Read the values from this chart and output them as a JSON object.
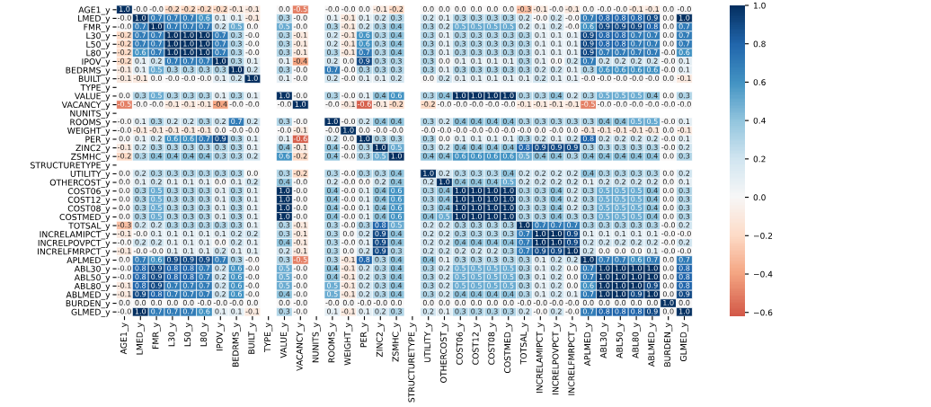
{
  "chart_data": {
    "type": "heatmap",
    "categories": [
      "AGE1_y",
      "LMED_y",
      "FMR_y",
      "L30_y",
      "L50_y",
      "L80_y",
      "IPOV_y",
      "BEDRMS_y",
      "BUILT_y",
      "TYPE_y",
      "VALUE_y",
      "VACANCY_y",
      "NUNITS_y",
      "ROOMS_y",
      "WEIGHT_y",
      "PER_y",
      "ZINC2_y",
      "ZSMHC_y",
      "STRUCTURETYPE_y",
      "UTILITY_y",
      "OTHERCOST_y",
      "COST06_y",
      "COST12_y",
      "COST08_y",
      "COSTMED_y",
      "TOTSAL_y",
      "INCRELAMIPCT_y",
      "INCRELPOVPCT_y",
      "INCRELFMRPCT_y",
      "APLMED_y",
      "ABL30_y",
      "ABL50_y",
      "ABL80_y",
      "ABLMED_y",
      "BURDEN_y",
      "GLMED_y"
    ],
    "y_categories": [
      "AGE1_y",
      "LMED_y",
      "FMR_y",
      "L30_y",
      "L50_y",
      "L80_y",
      "IPOV_y",
      "BEDRMS_y",
      "BUILT_y",
      "TYPE_y",
      "VALUE_y",
      "VACANCY_y",
      "NUNITS_y",
      "ROOMS_y",
      "WEIGHT_y",
      "PER_y",
      "ZINC2_y",
      "ZSMHC_y",
      "STRUCTURETYPE_y",
      "UTILITY_y",
      "OTHERCOST_y",
      "COST06_y",
      "COST12_y",
      "COST08_y",
      "COSTMED_y",
      "TOTSAL_y",
      "INCRELAMIPCT_y",
      "INCRELPOVPCT_y",
      "INCRELFMRPCT_y",
      "APLMED_y",
      "ABL30_y",
      "ABL50_y",
      "ABL80_y",
      "ABLMED_y",
      "BURDEN_y",
      "GLMED_y"
    ],
    "cells": [
      [
        1.0,
        -0.0,
        -0.0,
        -0.2,
        -0.2,
        -0.2,
        -0.2,
        -0.1,
        -0.1,
        null,
        0.0,
        -0.5,
        null,
        -0.0,
        -0.0,
        0.0,
        -0.1,
        -0.2,
        null,
        0.0,
        0.0,
        0.0,
        0.0,
        0.0,
        0.0,
        -0.3,
        -0.1,
        -0.0,
        -0.1,
        0.0,
        -0.0,
        -0.0,
        -0.1,
        -0.1,
        0.0,
        -0.0
      ],
      [
        -0.0,
        1.0,
        0.7,
        0.7,
        0.7,
        0.6,
        0.1,
        0.1,
        -0.1,
        null,
        0.3,
        -0.0,
        null,
        0.1,
        -0.1,
        0.1,
        0.2,
        0.3,
        null,
        0.2,
        0.1,
        0.3,
        0.3,
        0.3,
        0.3,
        0.2,
        -0.0,
        0.2,
        -0.0,
        0.7,
        0.8,
        0.8,
        0.8,
        0.9,
        0.0,
        1.0
      ],
      [
        -0.0,
        0.7,
        1.0,
        0.7,
        0.7,
        0.7,
        0.2,
        0.5,
        0.0,
        null,
        0.5,
        -0.0,
        null,
        0.3,
        -0.1,
        0.2,
        0.3,
        0.4,
        null,
        0.3,
        0.2,
        0.5,
        0.5,
        0.5,
        0.5,
        0.2,
        0.1,
        0.2,
        -0.0,
        0.6,
        0.9,
        0.9,
        0.9,
        0.8,
        0.0,
        0.7
      ],
      [
        -0.2,
        0.7,
        0.7,
        1.0,
        1.0,
        1.0,
        0.7,
        0.3,
        -0.0,
        null,
        0.3,
        -0.1,
        null,
        0.2,
        -0.1,
        0.6,
        0.3,
        0.4,
        null,
        0.3,
        0.1,
        0.3,
        0.3,
        0.3,
        0.3,
        0.3,
        0.1,
        0.1,
        0.1,
        0.9,
        0.8,
        0.8,
        0.7,
        0.7,
        0.0,
        0.7
      ],
      [
        -0.2,
        0.7,
        0.7,
        1.0,
        1.0,
        1.0,
        0.7,
        0.3,
        -0.0,
        null,
        0.3,
        -0.1,
        null,
        0.2,
        -0.1,
        0.6,
        0.3,
        0.4,
        null,
        0.3,
        0.1,
        0.3,
        0.3,
        0.3,
        0.3,
        0.3,
        0.1,
        0.1,
        0.1,
        0.9,
        0.8,
        0.8,
        0.7,
        0.7,
        0.0,
        0.7
      ],
      [
        -0.2,
        0.6,
        0.7,
        1.0,
        1.0,
        1.0,
        0.7,
        0.3,
        -0.0,
        null,
        0.3,
        -0.1,
        null,
        0.3,
        -0.1,
        0.7,
        0.3,
        0.4,
        null,
        0.3,
        0.1,
        0.3,
        0.3,
        0.3,
        0.3,
        0.3,
        0.1,
        0.1,
        0.1,
        0.9,
        0.7,
        0.7,
        0.7,
        0.7,
        -0.0,
        0.6
      ],
      [
        -0.2,
        0.1,
        0.2,
        0.7,
        0.7,
        0.7,
        1.0,
        0.3,
        0.1,
        null,
        0.1,
        -0.4,
        null,
        0.2,
        0.0,
        0.9,
        0.3,
        0.3,
        null,
        0.3,
        0.0,
        0.1,
        0.1,
        0.1,
        0.1,
        0.3,
        0.1,
        0.0,
        0.2,
        0.7,
        0.2,
        0.2,
        0.2,
        0.2,
        -0.0,
        0.1
      ],
      [
        -0.1,
        0.1,
        0.5,
        0.3,
        0.3,
        0.3,
        0.3,
        1.0,
        0.2,
        null,
        0.3,
        -0.0,
        null,
        0.7,
        -0.0,
        0.3,
        0.3,
        0.3,
        null,
        0.3,
        0.1,
        0.3,
        0.3,
        0.3,
        0.3,
        0.3,
        0.2,
        0.2,
        0.1,
        0.3,
        0.6,
        0.6,
        0.6,
        0.6,
        -0.0,
        0.1
      ],
      [
        -0.1,
        -0.1,
        0.0,
        -0.0,
        -0.0,
        -0.0,
        0.1,
        0.2,
        1.0,
        null,
        0.1,
        -0.0,
        null,
        0.2,
        -0.0,
        0.1,
        0.1,
        0.2,
        null,
        0.0,
        0.2,
        0.1,
        0.1,
        0.1,
        0.1,
        0.1,
        0.2,
        0.1,
        0.1,
        -0.0,
        -0.0,
        -0.0,
        -0.0,
        -0.0,
        0.0,
        -0.1
      ],
      [
        null,
        null,
        null,
        null,
        null,
        null,
        null,
        null,
        null,
        null,
        null,
        null,
        null,
        null,
        null,
        null,
        null,
        null,
        null,
        null,
        null,
        null,
        null,
        null,
        null,
        null,
        null,
        null,
        null,
        null,
        null,
        null,
        null,
        null,
        null,
        null
      ],
      [
        0.0,
        0.3,
        0.5,
        0.3,
        0.3,
        0.3,
        0.1,
        0.3,
        0.1,
        null,
        1.0,
        -0.0,
        null,
        0.3,
        -0.0,
        0.1,
        0.4,
        0.6,
        null,
        0.3,
        0.4,
        1.0,
        1.0,
        1.0,
        1.0,
        0.3,
        0.3,
        0.4,
        0.2,
        0.3,
        0.5,
        0.5,
        0.5,
        0.4,
        0.0,
        0.3
      ],
      [
        -0.5,
        -0.0,
        -0.0,
        -0.1,
        -0.1,
        -0.1,
        -0.4,
        -0.0,
        -0.0,
        null,
        -0.0,
        1.0,
        null,
        -0.0,
        -0.1,
        -0.6,
        -0.1,
        -0.2,
        null,
        -0.2,
        -0.0,
        -0.0,
        -0.0,
        -0.0,
        -0.0,
        -0.1,
        -0.1,
        -0.1,
        -0.1,
        -0.5,
        -0.0,
        -0.0,
        -0.0,
        -0.0,
        -0.0,
        -0.0
      ],
      [
        null,
        null,
        null,
        null,
        null,
        null,
        null,
        null,
        null,
        null,
        null,
        null,
        null,
        null,
        null,
        null,
        null,
        null,
        null,
        null,
        null,
        null,
        null,
        null,
        null,
        null,
        null,
        null,
        null,
        null,
        null,
        null,
        null,
        null,
        null,
        null
      ],
      [
        -0.0,
        0.1,
        0.3,
        0.2,
        0.2,
        0.3,
        0.2,
        0.7,
        0.2,
        null,
        0.3,
        -0.0,
        null,
        1.0,
        -0.0,
        0.2,
        0.4,
        0.4,
        null,
        0.3,
        0.2,
        0.4,
        0.4,
        0.4,
        0.4,
        0.3,
        0.3,
        0.3,
        0.3,
        0.3,
        0.4,
        0.4,
        0.5,
        0.5,
        -0.0,
        0.1
      ],
      [
        -0.0,
        -0.1,
        -0.1,
        -0.1,
        -0.1,
        -0.1,
        0.0,
        -0.0,
        -0.0,
        null,
        -0.0,
        -0.1,
        null,
        -0.0,
        1.0,
        0.0,
        -0.0,
        -0.0,
        null,
        -0.0,
        -0.0,
        -0.0,
        -0.0,
        -0.0,
        -0.0,
        -0.0,
        0.0,
        -0.0,
        0.0,
        -0.1,
        -0.1,
        -0.1,
        -0.1,
        -0.1,
        0.0,
        -0.1
      ],
      [
        0.0,
        0.1,
        0.2,
        0.6,
        0.6,
        0.7,
        0.9,
        0.3,
        0.1,
        null,
        0.1,
        -0.6,
        null,
        0.2,
        0.0,
        1.0,
        0.3,
        0.3,
        null,
        0.3,
        0.0,
        0.1,
        0.1,
        0.1,
        0.1,
        0.3,
        0.2,
        0.1,
        0.2,
        0.8,
        0.2,
        0.2,
        0.2,
        0.2,
        -0.0,
        0.1
      ],
      [
        -0.1,
        0.2,
        0.3,
        0.3,
        0.3,
        0.3,
        0.3,
        0.3,
        0.1,
        null,
        0.4,
        -0.1,
        null,
        0.4,
        -0.0,
        0.3,
        1.0,
        0.5,
        null,
        0.3,
        0.2,
        0.4,
        0.4,
        0.4,
        0.4,
        0.8,
        0.9,
        0.9,
        0.9,
        0.3,
        0.3,
        0.3,
        0.3,
        0.3,
        -0.0,
        0.2
      ],
      [
        -0.2,
        0.3,
        0.4,
        0.4,
        0.4,
        0.4,
        0.3,
        0.3,
        0.2,
        null,
        0.6,
        -0.2,
        null,
        0.4,
        -0.0,
        0.3,
        0.5,
        1.0,
        null,
        0.4,
        0.4,
        0.6,
        0.6,
        0.6,
        0.6,
        0.5,
        0.4,
        0.4,
        0.3,
        0.4,
        0.4,
        0.4,
        0.4,
        0.4,
        0.0,
        0.3
      ],
      [
        null,
        null,
        null,
        null,
        null,
        null,
        null,
        null,
        null,
        null,
        null,
        null,
        null,
        null,
        null,
        null,
        null,
        null,
        null,
        null,
        null,
        null,
        null,
        null,
        null,
        null,
        null,
        null,
        null,
        null,
        null,
        null,
        null,
        null,
        null,
        null
      ],
      [
        0.0,
        0.2,
        0.3,
        0.3,
        0.3,
        0.3,
        0.3,
        0.3,
        0.0,
        null,
        0.3,
        -0.2,
        null,
        0.3,
        -0.0,
        0.3,
        0.3,
        0.4,
        null,
        1.0,
        0.2,
        0.3,
        0.3,
        0.3,
        0.4,
        0.2,
        0.2,
        0.2,
        0.2,
        0.4,
        0.3,
        0.3,
        0.3,
        0.3,
        0.0,
        0.2
      ],
      [
        0.0,
        0.1,
        0.2,
        0.1,
        0.1,
        0.1,
        0.0,
        0.1,
        0.2,
        null,
        0.4,
        -0.0,
        null,
        0.2,
        -0.0,
        0.0,
        0.2,
        0.4,
        null,
        0.2,
        1.0,
        0.4,
        0.4,
        0.4,
        0.5,
        0.2,
        0.2,
        0.2,
        0.2,
        0.1,
        0.2,
        0.2,
        0.2,
        0.2,
        0.0,
        0.1
      ],
      [
        0.0,
        0.3,
        0.5,
        0.3,
        0.3,
        0.3,
        0.1,
        0.3,
        0.1,
        null,
        1.0,
        -0.0,
        null,
        0.4,
        -0.0,
        0.1,
        0.4,
        0.6,
        null,
        0.3,
        0.4,
        1.0,
        1.0,
        1.0,
        1.0,
        0.3,
        0.3,
        0.4,
        0.2,
        0.3,
        0.5,
        0.5,
        0.5,
        0.4,
        0.0,
        0.3
      ],
      [
        0.0,
        0.3,
        0.5,
        0.3,
        0.3,
        0.3,
        0.1,
        0.3,
        0.1,
        null,
        1.0,
        -0.0,
        null,
        0.4,
        -0.0,
        0.1,
        0.4,
        0.6,
        null,
        0.3,
        0.4,
        1.0,
        1.0,
        1.0,
        1.0,
        0.3,
        0.3,
        0.4,
        0.2,
        0.3,
        0.5,
        0.5,
        0.5,
        0.4,
        0.0,
        0.3
      ],
      [
        0.0,
        0.3,
        0.5,
        0.3,
        0.3,
        0.3,
        0.1,
        0.3,
        0.1,
        null,
        1.0,
        -0.0,
        null,
        0.4,
        -0.0,
        0.1,
        0.4,
        0.6,
        null,
        0.3,
        0.4,
        1.0,
        1.0,
        1.0,
        1.0,
        0.3,
        0.3,
        0.4,
        0.2,
        0.3,
        0.5,
        0.5,
        0.5,
        0.4,
        0.0,
        0.3
      ],
      [
        0.0,
        0.3,
        0.5,
        0.3,
        0.3,
        0.3,
        0.1,
        0.3,
        0.1,
        null,
        1.0,
        -0.0,
        null,
        0.4,
        -0.0,
        0.1,
        0.4,
        0.6,
        null,
        0.4,
        0.5,
        1.0,
        1.0,
        1.0,
        1.0,
        0.3,
        0.3,
        0.4,
        0.3,
        0.3,
        0.5,
        0.5,
        0.5,
        0.4,
        0.0,
        0.3
      ],
      [
        -0.3,
        0.2,
        0.2,
        0.3,
        0.3,
        0.3,
        0.3,
        0.3,
        0.1,
        null,
        0.3,
        -0.1,
        null,
        0.3,
        -0.0,
        0.3,
        0.8,
        0.5,
        null,
        0.2,
        0.2,
        0.3,
        0.3,
        0.3,
        0.3,
        1.0,
        0.7,
        0.7,
        0.7,
        0.3,
        0.3,
        0.3,
        0.3,
        0.3,
        -0.0,
        0.2
      ],
      [
        -0.1,
        -0.0,
        0.1,
        0.1,
        0.1,
        0.1,
        0.1,
        0.2,
        0.2,
        null,
        0.3,
        -0.1,
        null,
        0.3,
        0.0,
        0.2,
        0.9,
        0.4,
        null,
        0.2,
        0.2,
        0.3,
        0.3,
        0.3,
        0.3,
        0.7,
        1.0,
        1.0,
        0.9,
        0.1,
        0.1,
        0.1,
        0.1,
        0.1,
        -0.0,
        -0.0
      ],
      [
        -0.0,
        0.2,
        0.2,
        0.1,
        0.1,
        0.1,
        0.0,
        0.2,
        0.1,
        null,
        0.4,
        -0.1,
        null,
        0.3,
        -0.0,
        0.1,
        0.9,
        0.4,
        null,
        0.2,
        0.2,
        0.4,
        0.4,
        0.4,
        0.4,
        0.7,
        1.0,
        1.0,
        0.9,
        0.2,
        0.2,
        0.2,
        0.2,
        0.2,
        -0.0,
        0.2
      ],
      [
        -0.1,
        -0.0,
        -0.0,
        0.1,
        0.1,
        0.1,
        0.2,
        0.1,
        0.1,
        null,
        0.2,
        -0.1,
        null,
        0.3,
        0.0,
        0.2,
        0.9,
        0.3,
        null,
        0.2,
        0.2,
        0.2,
        0.2,
        0.2,
        0.3,
        0.7,
        0.9,
        0.9,
        1.0,
        0.2,
        0.0,
        0.0,
        0.0,
        0.1,
        -0.0,
        -0.0
      ],
      [
        0.0,
        0.7,
        0.6,
        0.9,
        0.9,
        0.9,
        0.7,
        0.3,
        -0.0,
        null,
        0.3,
        -0.5,
        null,
        0.3,
        -0.1,
        0.8,
        0.3,
        0.4,
        null,
        0.4,
        0.1,
        0.3,
        0.3,
        0.3,
        0.3,
        0.3,
        0.1,
        0.2,
        0.2,
        1.0,
        0.7,
        0.7,
        0.6,
        0.7,
        0.0,
        0.7
      ],
      [
        -0.0,
        0.8,
        0.9,
        0.8,
        0.8,
        0.7,
        0.2,
        0.6,
        -0.0,
        null,
        0.5,
        -0.0,
        null,
        0.4,
        -0.1,
        0.2,
        0.3,
        0.4,
        null,
        0.3,
        0.2,
        0.5,
        0.5,
        0.5,
        0.5,
        0.3,
        0.1,
        0.2,
        0.0,
        0.7,
        1.0,
        1.0,
        1.0,
        1.0,
        0.0,
        0.8
      ],
      [
        -0.0,
        0.8,
        0.9,
        0.8,
        0.8,
        0.7,
        0.2,
        0.6,
        -0.0,
        null,
        0.5,
        -0.0,
        null,
        0.4,
        -0.1,
        0.2,
        0.3,
        0.4,
        null,
        0.3,
        0.2,
        0.5,
        0.5,
        0.5,
        0.5,
        0.3,
        0.1,
        0.2,
        0.0,
        0.7,
        1.0,
        1.0,
        1.0,
        1.0,
        0.0,
        0.8
      ],
      [
        -0.1,
        0.8,
        0.9,
        0.7,
        0.7,
        0.7,
        0.2,
        0.6,
        -0.0,
        null,
        0.5,
        -0.0,
        null,
        0.5,
        -0.1,
        0.2,
        0.3,
        0.4,
        null,
        0.3,
        0.2,
        0.5,
        0.5,
        0.5,
        0.5,
        0.3,
        0.1,
        0.2,
        0.0,
        0.6,
        1.0,
        1.0,
        1.0,
        0.9,
        0.0,
        0.8
      ],
      [
        -0.1,
        0.9,
        0.8,
        0.7,
        0.7,
        0.7,
        0.2,
        0.6,
        -0.0,
        null,
        0.4,
        -0.0,
        null,
        0.5,
        -0.1,
        0.2,
        0.3,
        0.4,
        null,
        0.3,
        0.2,
        0.4,
        0.4,
        0.4,
        0.4,
        0.3,
        0.1,
        0.2,
        0.1,
        0.7,
        1.0,
        1.0,
        0.9,
        1.0,
        0.0,
        0.9
      ],
      [
        0.0,
        0.0,
        0.0,
        0.0,
        0.0,
        -0.0,
        -0.0,
        -0.0,
        0.0,
        null,
        0.0,
        -0.0,
        null,
        -0.0,
        0.0,
        -0.0,
        -0.0,
        0.0,
        null,
        0.0,
        0.0,
        0.0,
        0.0,
        0.0,
        0.0,
        -0.0,
        -0.0,
        -0.0,
        -0.0,
        0.0,
        0.0,
        0.0,
        0.0,
        0.0,
        1.0,
        0.0
      ],
      [
        -0.0,
        1.0,
        0.7,
        0.7,
        0.7,
        0.6,
        0.1,
        0.1,
        -0.1,
        null,
        0.3,
        -0.0,
        null,
        0.1,
        -0.1,
        0.1,
        0.2,
        0.3,
        null,
        0.2,
        0.1,
        0.3,
        0.3,
        0.3,
        0.3,
        0.2,
        -0.0,
        0.2,
        -0.0,
        0.7,
        0.8,
        0.8,
        0.8,
        0.9,
        0.0,
        1.0
      ]
    ],
    "cell_labels": [
      [
        "1.0",
        "-0.0",
        "-0.0",
        "-0.2",
        "-0.2",
        "-0.2",
        "-0.2",
        "-0.1",
        "-0.1",
        null,
        "0.0",
        "-0.5",
        null,
        "-0.0",
        "-0.0",
        "0.0",
        "-0.1",
        "-0.2",
        null,
        "0.0",
        "0.0",
        "0.0",
        "0.0",
        "0.0",
        "0.0",
        "-0.3",
        "-0.1",
        "-0.0",
        "-0.1",
        "0.0",
        "-0.0",
        "-0.0",
        "-0.1",
        "-0.1",
        "0.0",
        "-0.0"
      ],
      [
        "-0.0",
        "1.0",
        "0.7",
        "0.7",
        "0.7",
        "0.6",
        "0.1",
        "0.1",
        "-0.1",
        null,
        "0.3",
        "-0.0",
        null,
        "0.1",
        "-0.1",
        "0.1",
        "0.2",
        "0.3",
        null,
        "0.2",
        "0.1",
        "0.3",
        "0.3",
        "0.3",
        "0.3",
        "0.2",
        "-0.0",
        "0.2",
        "-0.0",
        "0.7",
        "0.8",
        "0.8",
        "0.8",
        "0.9",
        "0.0",
        "1.0"
      ],
      [
        "-0.0",
        "0.7",
        "1.0",
        "0.7",
        "0.7",
        "0.7",
        "0.2",
        "0.5",
        "0.0",
        null,
        "0.5",
        "-0.0",
        null,
        "0.3",
        "-0.1",
        "0.2",
        "0.3",
        "0.4",
        null,
        "0.3",
        "0.2",
        "0.5",
        "0.5",
        "0.5",
        "0.5",
        "0.2",
        "0.1",
        "0.2",
        "-0.0",
        "0.6",
        "0.9",
        "0.9",
        "0.9",
        "0.8",
        "0.0",
        "0.7"
      ],
      [
        "-0.2",
        "0.7",
        "0.7",
        "1.0",
        "1.0",
        "1.0",
        "0.7",
        "0.3",
        "-0.0",
        null,
        "0.3",
        "-0.1",
        null,
        "0.2",
        "-0.1",
        "0.6",
        "0.3",
        "0.4",
        null,
        "0.3",
        "0.1",
        "0.3",
        "0.3",
        "0.3",
        "0.3",
        "0.3",
        "0.1",
        "0.1",
        "0.1",
        "0.9",
        "0.8",
        "0.8",
        "0.7",
        "0.7",
        "0.0",
        "0.7"
      ],
      [
        "-0.2",
        "0.7",
        "0.7",
        "1.0",
        "1.0",
        "1.0",
        "0.7",
        "0.3",
        "-0.0",
        null,
        "0.3",
        "-0.1",
        null,
        "0.2",
        "-0.1",
        "0.6",
        "0.3",
        "0.4",
        null,
        "0.3",
        "0.1",
        "0.3",
        "0.3",
        "0.3",
        "0.3",
        "0.3",
        "0.1",
        "0.1",
        "0.1",
        "0.9",
        "0.8",
        "0.8",
        "0.7",
        "0.7",
        "0.0",
        "0.7"
      ],
      [
        "-0.2",
        "0.6",
        "0.7",
        "1.0",
        "1.0",
        "1.0",
        "0.7",
        "0.3",
        "-0.0",
        null,
        "0.3",
        "-0.1",
        null,
        "0.3",
        "-0.1",
        "0.7",
        "0.3",
        "0.4",
        null,
        "0.3",
        "0.1",
        "0.3",
        "0.3",
        "0.3",
        "0.3",
        "0.3",
        "0.1",
        "0.1",
        "0.1",
        "0.9",
        "0.7",
        "0.7",
        "0.7",
        "0.7",
        "-0.0",
        "0.6"
      ],
      [
        "-0.2",
        "0.1",
        "0.2",
        "0.7",
        "0.7",
        "0.7",
        "1.0",
        "0.3",
        "0.1",
        null,
        "0.1",
        "-0.4",
        null,
        "0.2",
        "0.0",
        "0.9",
        "0.3",
        "0.3",
        null,
        "0.3",
        "0.0",
        "0.1",
        "0.1",
        "0.1",
        "0.1",
        "0.3",
        "0.1",
        "0.0",
        "0.2",
        "0.7",
        "0.2",
        "0.2",
        "0.2",
        "0.2",
        "-0.0",
        "0.1"
      ],
      [
        "-0.1",
        "0.1",
        "0.5",
        "0.3",
        "0.3",
        "0.3",
        "0.3",
        "1.0",
        "0.2",
        null,
        "0.3",
        "-0.0",
        null,
        "0.7",
        "-0.0",
        "0.3",
        "0.3",
        "0.3",
        null,
        "0.3",
        "0.1",
        "0.3",
        "0.3",
        "0.3",
        "0.3",
        "0.3",
        "0.2",
        "0.2",
        "0.1",
        "0.3",
        "0.6",
        "0.6",
        "0.6",
        "0.6",
        "-0.0",
        "0.1"
      ],
      [
        "-0.1",
        "-0.1",
        "0.0",
        "-0.0",
        "-0.0",
        "-0.0",
        "0.1",
        "0.2",
        "1.0",
        null,
        "0.1",
        "-0.0",
        null,
        "0.2",
        "-0.0",
        "0.1",
        "0.1",
        "0.2",
        null,
        "0.0",
        "0.2",
        "0.1",
        "0.1",
        "0.1",
        "0.1",
        "0.1",
        "0.2",
        "0.1",
        "0.1",
        "-0.0",
        "-0.0",
        "-0.0",
        "-0.0",
        "-0.0",
        "0.0",
        "-0.1"
      ],
      [
        null,
        null,
        null,
        null,
        null,
        null,
        null,
        null,
        null,
        null,
        null,
        null,
        null,
        null,
        null,
        null,
        null,
        null,
        null,
        null,
        null,
        null,
        null,
        null,
        null,
        null,
        null,
        null,
        null,
        null,
        null,
        null,
        null,
        null,
        null,
        null
      ],
      [
        "0.0",
        "0.3",
        "0.5",
        "0.3",
        "0.3",
        "0.3",
        "0.1",
        "0.3",
        "0.1",
        null,
        "1.0",
        "-0.0",
        null,
        "0.3",
        "-0.0",
        "0.1",
        "0.4",
        "0.6",
        null,
        "0.3",
        "0.4",
        "1.0",
        "1.0",
        "1.0",
        "1.0",
        "0.3",
        "0.3",
        "0.4",
        "0.2",
        "0.3",
        "0.5",
        "0.5",
        "0.5",
        "0.4",
        "0.0",
        "0.3"
      ],
      [
        "-0.5",
        "-0.0",
        "-0.0",
        "-0.1",
        "-0.1",
        "-0.1",
        "-0.4",
        "-0.0",
        "-0.0",
        null,
        "-0.0",
        "1.0",
        null,
        "-0.0",
        "-0.1",
        "-0.6",
        "-0.1",
        "-0.2",
        null,
        "-0.2",
        "-0.0",
        "-0.0",
        "-0.0",
        "-0.0",
        "-0.0",
        "-0.1",
        "-0.1",
        "-0.1",
        "-0.1",
        "-0.5",
        "-0.0",
        "-0.0",
        "-0.0",
        "-0.0",
        "-0.0",
        "-0.0"
      ],
      [
        null,
        null,
        null,
        null,
        null,
        null,
        null,
        null,
        null,
        null,
        null,
        null,
        null,
        null,
        null,
        null,
        null,
        null,
        null,
        null,
        null,
        null,
        null,
        null,
        null,
        null,
        null,
        null,
        null,
        null,
        null,
        null,
        null,
        null,
        null,
        null
      ],
      [
        "-0.0",
        "0.1",
        "0.3",
        "0.2",
        "0.2",
        "0.3",
        "0.2",
        "0.7",
        "0.2",
        null,
        "0.3",
        "-0.0",
        null,
        "1.0",
        "-0.0",
        "0.2",
        "0.4",
        "0.4",
        null,
        "0.3",
        "0.2",
        "0.4",
        "0.4",
        "0.4",
        "0.4",
        "0.3",
        "0.3",
        "0.3",
        "0.3",
        "0.3",
        "0.4",
        "0.4",
        "0.5",
        "0.5",
        "-0.0",
        "0.1"
      ],
      [
        "-0.0",
        "-0.1",
        "-0.1",
        "-0.1",
        "-0.1",
        "-0.1",
        "0.0",
        "-0.0",
        "-0.0",
        null,
        "-0.0",
        "-0.1",
        null,
        "-0.0",
        "1.0",
        "0.0",
        "-0.0",
        "-0.0",
        null,
        "-0.0",
        "-0.0",
        "-0.0",
        "-0.0",
        "-0.0",
        "-0.0",
        "-0.0",
        "0.0",
        "-0.0",
        "0.0",
        "-0.1",
        "-0.1",
        "-0.1",
        "-0.1",
        "-0.1",
        "0.0",
        "-0.1"
      ],
      [
        "0.0",
        "0.1",
        "0.2",
        "0.6",
        "0.6",
        "0.7",
        "0.9",
        "0.3",
        "0.1",
        null,
        "0.1",
        "-0.6",
        null,
        "0.2",
        "0.0",
        "1.0",
        "0.3",
        "0.3",
        null,
        "0.3",
        "0.0",
        "0.1",
        "0.1",
        "0.1",
        "0.1",
        "0.3",
        "0.2",
        "0.1",
        "0.2",
        "0.8",
        "0.2",
        "0.2",
        "0.2",
        "0.2",
        "-0.0",
        "0.1"
      ],
      [
        "-0.1",
        "0.2",
        "0.3",
        "0.3",
        "0.3",
        "0.3",
        "0.3",
        "0.3",
        "0.1",
        null,
        "0.4",
        "-0.1",
        null,
        "0.4",
        "-0.0",
        "0.3",
        "1.0",
        "0.5",
        null,
        "0.3",
        "0.2",
        "0.4",
        "0.4",
        "0.4",
        "0.4",
        "0.8",
        "0.9",
        "0.9",
        "0.9",
        "0.3",
        "0.3",
        "0.3",
        "0.3",
        "0.3",
        "-0.0",
        "0.2"
      ],
      [
        "-0.2",
        "0.3",
        "0.4",
        "0.4",
        "0.4",
        "0.4",
        "0.3",
        "0.3",
        "0.2",
        null,
        "0.6",
        "-0.2",
        null,
        "0.4",
        "-0.0",
        "0.3",
        "0.5",
        "1.0",
        null,
        "0.4",
        "0.4",
        "0.6",
        "0.6",
        "0.6",
        "0.6",
        "0.5",
        "0.4",
        "0.4",
        "0.3",
        "0.4",
        "0.4",
        "0.4",
        "0.4",
        "0.4",
        "0.0",
        "0.3"
      ],
      [
        null,
        null,
        null,
        null,
        null,
        null,
        null,
        null,
        null,
        null,
        null,
        null,
        null,
        null,
        null,
        null,
        null,
        null,
        null,
        null,
        null,
        null,
        null,
        null,
        null,
        null,
        null,
        null,
        null,
        null,
        null,
        null,
        null,
        null,
        null,
        null
      ],
      [
        "0.0",
        "0.2",
        "0.3",
        "0.3",
        "0.3",
        "0.3",
        "0.3",
        "0.3",
        "0.0",
        null,
        "0.3",
        "-0.2",
        null,
        "0.3",
        "-0.0",
        "0.3",
        "0.3",
        "0.4",
        null,
        "1.0",
        "0.2",
        "0.3",
        "0.3",
        "0.3",
        "0.4",
        "0.2",
        "0.2",
        "0.2",
        "0.2",
        "0.4",
        "0.3",
        "0.3",
        "0.3",
        "0.3",
        "0.0",
        "0.2"
      ],
      [
        "0.0",
        "0.1",
        "0.2",
        "0.1",
        "0.1",
        "0.1",
        "0.0",
        "0.1",
        "0.2",
        null,
        "0.4",
        "-0.0",
        null,
        "0.2",
        "-0.0",
        "0.0",
        "0.2",
        "0.4",
        null,
        "0.2",
        "1.0",
        "0.4",
        "0.4",
        "0.4",
        "0.5",
        "0.2",
        "0.2",
        "0.2",
        "0.2",
        "0.1",
        "0.2",
        "0.2",
        "0.2",
        "0.2",
        "0.0",
        "0.1"
      ],
      [
        "0.0",
        "0.3",
        "0.5",
        "0.3",
        "0.3",
        "0.3",
        "0.1",
        "0.3",
        "0.1",
        null,
        "1.0",
        "-0.0",
        null,
        "0.4",
        "-0.0",
        "0.1",
        "0.4",
        "0.6",
        null,
        "0.3",
        "0.4",
        "1.0",
        "1.0",
        "1.0",
        "1.0",
        "0.3",
        "0.3",
        "0.4",
        "0.2",
        "0.3",
        "0.5",
        "0.5",
        "0.5",
        "0.4",
        "0.0",
        "0.3"
      ],
      [
        "0.0",
        "0.3",
        "0.5",
        "0.3",
        "0.3",
        "0.3",
        "0.1",
        "0.3",
        "0.1",
        null,
        "1.0",
        "-0.0",
        null,
        "0.4",
        "-0.0",
        "0.1",
        "0.4",
        "0.6",
        null,
        "0.3",
        "0.4",
        "1.0",
        "1.0",
        "1.0",
        "1.0",
        "0.3",
        "0.3",
        "0.4",
        "0.2",
        "0.3",
        "0.5",
        "0.5",
        "0.5",
        "0.4",
        "0.0",
        "0.3"
      ],
      [
        "0.0",
        "0.3",
        "0.5",
        "0.3",
        "0.3",
        "0.3",
        "0.1",
        "0.3",
        "0.1",
        null,
        "1.0",
        "-0.0",
        null,
        "0.4",
        "-0.0",
        "0.1",
        "0.4",
        "0.6",
        null,
        "0.3",
        "0.4",
        "1.0",
        "1.0",
        "1.0",
        "1.0",
        "0.3",
        "0.3",
        "0.4",
        "0.2",
        "0.3",
        "0.5",
        "0.5",
        "0.5",
        "0.4",
        "0.0",
        "0.3"
      ],
      [
        "0.0",
        "0.3",
        "0.5",
        "0.3",
        "0.3",
        "0.3",
        "0.1",
        "0.3",
        "0.1",
        null,
        "1.0",
        "-0.0",
        null,
        "0.4",
        "-0.0",
        "0.1",
        "0.4",
        "0.6",
        null,
        "0.4",
        "0.5",
        "1.0",
        "1.0",
        "1.0",
        "1.0",
        "0.3",
        "0.3",
        "0.4",
        "0.3",
        "0.3",
        "0.5",
        "0.5",
        "0.5",
        "0.4",
        "0.0",
        "0.3"
      ],
      [
        "-0.3",
        "0.2",
        "0.2",
        "0.3",
        "0.3",
        "0.3",
        "0.3",
        "0.3",
        "0.1",
        null,
        "0.3",
        "-0.1",
        null,
        "0.3",
        "-0.0",
        "0.3",
        "0.8",
        "0.5",
        null,
        "0.2",
        "0.2",
        "0.3",
        "0.3",
        "0.3",
        "0.3",
        "1.0",
        "0.7",
        "0.7",
        "0.7",
        "0.3",
        "0.3",
        "0.3",
        "0.3",
        "0.3",
        "-0.0",
        "0.2"
      ],
      [
        "-0.1",
        "-0.0",
        "0.1",
        "0.1",
        "0.1",
        "0.1",
        "0.1",
        "0.2",
        "0.2",
        null,
        "0.3",
        "-0.1",
        null,
        "0.3",
        "0.0",
        "0.2",
        "0.9",
        "0.4",
        null,
        "0.2",
        "0.2",
        "0.3",
        "0.3",
        "0.3",
        "0.3",
        "0.7",
        "1.0",
        "1.0",
        "0.9",
        "0.1",
        "0.1",
        "0.1",
        "0.1",
        "0.1",
        "-0.0",
        "-0.0"
      ],
      [
        "-0.0",
        "0.2",
        "0.2",
        "0.1",
        "0.1",
        "0.1",
        "0.0",
        "0.2",
        "0.1",
        null,
        "0.4",
        "-0.1",
        null,
        "0.3",
        "-0.0",
        "0.1",
        "0.9",
        "0.4",
        null,
        "0.2",
        "0.2",
        "0.4",
        "0.4",
        "0.4",
        "0.4",
        "0.7",
        "1.0",
        "1.0",
        "0.9",
        "0.2",
        "0.2",
        "0.2",
        "0.2",
        "0.2",
        "-0.0",
        "0.2"
      ],
      [
        "-0.1",
        "-0.0",
        "-0.0",
        "0.1",
        "0.1",
        "0.1",
        "0.2",
        "0.1",
        "0.1",
        null,
        "0.2",
        "-0.1",
        null,
        "0.3",
        "0.0",
        "0.2",
        "0.9",
        "0.3",
        null,
        "0.2",
        "0.2",
        "0.2",
        "0.2",
        "0.2",
        "0.3",
        "0.7",
        "0.9",
        "0.9",
        "1.0",
        "0.2",
        "0.0",
        "0.0",
        "0.0",
        "0.1",
        "-0.0",
        "-0.0"
      ],
      [
        "0.0",
        "0.7",
        "0.6",
        "0.9",
        "0.9",
        "0.9",
        "0.7",
        "0.3",
        "-0.0",
        null,
        "0.3",
        "-0.5",
        null,
        "0.3",
        "-0.1",
        "0.8",
        "0.3",
        "0.4",
        null,
        "0.4",
        "0.1",
        "0.3",
        "0.3",
        "0.3",
        "0.3",
        "0.3",
        "0.1",
        "0.2",
        "0.2",
        "1.0",
        "0.7",
        "0.7",
        "0.6",
        "0.7",
        "0.0",
        "0.7"
      ],
      [
        "-0.0",
        "0.8",
        "0.9",
        "0.8",
        "0.8",
        "0.7",
        "0.2",
        "0.6",
        "-0.0",
        null,
        "0.5",
        "-0.0",
        null,
        "0.4",
        "-0.1",
        "0.2",
        "0.3",
        "0.4",
        null,
        "0.3",
        "0.2",
        "0.5",
        "0.5",
        "0.5",
        "0.5",
        "0.3",
        "0.1",
        "0.2",
        "0.0",
        "0.7",
        "1.0",
        "1.0",
        "1.0",
        "1.0",
        "0.0",
        "0.8"
      ],
      [
        "-0.0",
        "0.8",
        "0.9",
        "0.8",
        "0.8",
        "0.7",
        "0.2",
        "0.6",
        "-0.0",
        null,
        "0.5",
        "-0.0",
        null,
        "0.4",
        "-0.1",
        "0.2",
        "0.3",
        "0.4",
        null,
        "0.3",
        "0.2",
        "0.5",
        "0.5",
        "0.5",
        "0.5",
        "0.3",
        "0.1",
        "0.2",
        "0.0",
        "0.7",
        "1.0",
        "1.0",
        "1.0",
        "1.0",
        "0.0",
        "0.8"
      ],
      [
        "-0.1",
        "0.8",
        "0.9",
        "0.7",
        "0.7",
        "0.7",
        "0.2",
        "0.6",
        "-0.0",
        null,
        "0.5",
        "-0.0",
        null,
        "0.5",
        "-0.1",
        "0.2",
        "0.3",
        "0.4",
        null,
        "0.3",
        "0.2",
        "0.5",
        "0.5",
        "0.5",
        "0.5",
        "0.3",
        "0.1",
        "0.2",
        "0.0",
        "0.6",
        "1.0",
        "1.0",
        "1.0",
        "0.9",
        "0.0",
        "0.8"
      ],
      [
        "-0.1",
        "0.9",
        "0.8",
        "0.7",
        "0.7",
        "0.7",
        "0.2",
        "0.6",
        "-0.0",
        null,
        "0.4",
        "-0.0",
        null,
        "0.5",
        "-0.1",
        "0.2",
        "0.3",
        "0.4",
        null,
        "0.3",
        "0.2",
        "0.4",
        "0.4",
        "0.4",
        "0.4",
        "0.3",
        "0.1",
        "0.2",
        "0.1",
        "0.7",
        "1.0",
        "1.0",
        "0.9",
        "1.0",
        "0.0",
        "0.9"
      ],
      [
        "0.0",
        "0.0",
        "0.0",
        "0.0",
        "0.0",
        "-0.0",
        "-0.0",
        "-0.0",
        "0.0",
        null,
        "0.0",
        "-0.0",
        null,
        "-0.0",
        "0.0",
        "-0.0",
        "-0.0",
        "0.0",
        null,
        "0.0",
        "0.0",
        "0.0",
        "0.0",
        "0.0",
        "0.0",
        "-0.0",
        "-0.0",
        "-0.0",
        "-0.0",
        "0.0",
        "0.0",
        "0.0",
        "0.0",
        "0.0",
        "1.0",
        "0.0"
      ],
      [
        "-0.0",
        "1.0",
        "0.7",
        "0.7",
        "0.7",
        "0.6",
        "0.1",
        "0.1",
        "-0.1",
        null,
        "0.3",
        "-0.0",
        null,
        "0.1",
        "-0.1",
        "0.1",
        "0.2",
        "0.3",
        null,
        "0.2",
        "0.1",
        "0.3",
        "0.3",
        "0.3",
        "0.3",
        "0.2",
        "-0.0",
        "0.2",
        "-0.0",
        "0.7",
        "0.8",
        "0.8",
        "0.8",
        "0.9",
        "0.0",
        "1.0"
      ]
    ],
    "clim": [
      -0.62,
      1.0
    ],
    "cticks": [
      {
        "value": -0.6,
        "label": "−0.6"
      },
      {
        "value": -0.4,
        "label": "−0.4"
      },
      {
        "value": -0.2,
        "label": "−0.2"
      },
      {
        "value": 0.0,
        "label": "0.0"
      },
      {
        "value": 0.2,
        "label": "0.2"
      },
      {
        "value": 0.4,
        "label": "0.4"
      },
      {
        "value": 0.6,
        "label": "0.6"
      },
      {
        "value": 0.8,
        "label": "0.8"
      },
      {
        "value": 1.0,
        "label": "1.0"
      }
    ]
  }
}
